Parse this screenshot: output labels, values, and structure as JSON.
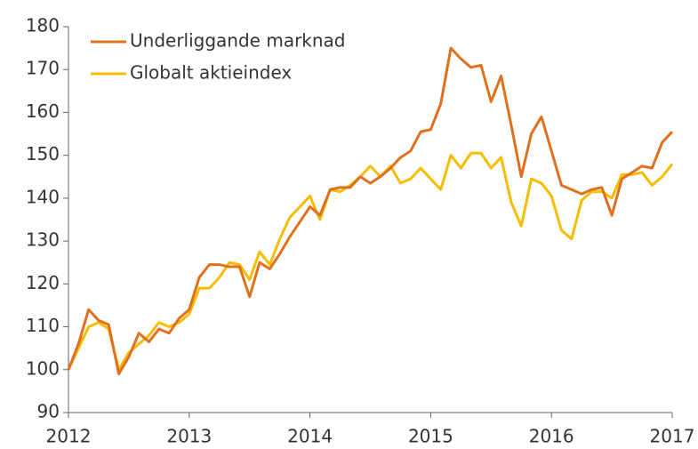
{
  "chart_data": {
    "type": "line",
    "x": [
      2012,
      2012.083,
      2012.167,
      2012.25,
      2012.333,
      2012.417,
      2012.5,
      2012.583,
      2012.667,
      2012.75,
      2012.833,
      2012.917,
      2013,
      2013.083,
      2013.167,
      2013.25,
      2013.333,
      2013.417,
      2013.5,
      2013.583,
      2013.667,
      2013.75,
      2013.833,
      2013.917,
      2014,
      2014.083,
      2014.167,
      2014.25,
      2014.333,
      2014.417,
      2014.5,
      2014.583,
      2014.667,
      2014.75,
      2014.833,
      2014.917,
      2015,
      2015.083,
      2015.167,
      2015.25,
      2015.333,
      2015.417,
      2015.5,
      2015.583,
      2015.667,
      2015.75,
      2015.833,
      2015.917,
      2016,
      2016.083,
      2016.167,
      2016.25,
      2016.333,
      2016.417,
      2016.5,
      2016.583,
      2016.667,
      2016.75,
      2016.833,
      2016.917,
      2017
    ],
    "series": [
      {
        "name": "Underliggande marknad",
        "color": "#e0701e",
        "values": [
          100,
          106,
          114,
          111.5,
          110.5,
          99,
          103,
          108.5,
          106.5,
          109.5,
          108.5,
          112,
          114,
          121.5,
          124.5,
          124.5,
          124,
          124,
          117,
          125,
          123.5,
          127,
          131,
          134.5,
          138,
          136,
          142,
          142.5,
          142.5,
          145,
          143.5,
          145,
          147,
          149.5,
          151,
          155.5,
          156,
          162,
          175,
          172.5,
          170.5,
          171,
          162.5,
          168.5,
          157,
          145,
          155,
          159,
          151,
          143,
          142,
          141,
          142,
          142.5,
          136,
          144.5,
          146,
          147.5,
          147,
          153,
          155.5
        ]
      },
      {
        "name": "Globalt aktieindex",
        "color": "#f5bd00",
        "values": [
          100,
          105,
          110,
          111,
          109.5,
          100,
          104,
          106,
          108,
          111,
          110,
          111,
          113,
          119,
          119,
          121.5,
          125,
          124.5,
          121,
          127.5,
          124.5,
          130.5,
          135.5,
          138,
          140.5,
          135,
          142,
          141.5,
          143,
          145,
          147.5,
          145,
          147.5,
          143.5,
          144.5,
          147,
          144.5,
          142,
          150,
          147,
          150.5,
          150.5,
          147,
          149.5,
          139,
          133.5,
          144.5,
          143.5,
          140.5,
          132.5,
          130.5,
          139.5,
          141.5,
          141.5,
          140,
          145.5,
          145.5,
          146,
          143,
          145,
          148
        ]
      }
    ],
    "xlim": [
      2012,
      2017
    ],
    "xticks": [
      2012,
      2013,
      2014,
      2015,
      2016,
      2017
    ],
    "ylim": [
      90,
      180
    ],
    "yticks": [
      90,
      100,
      110,
      120,
      130,
      140,
      150,
      160,
      170,
      180
    ],
    "grid": false,
    "legend": "upper left"
  }
}
